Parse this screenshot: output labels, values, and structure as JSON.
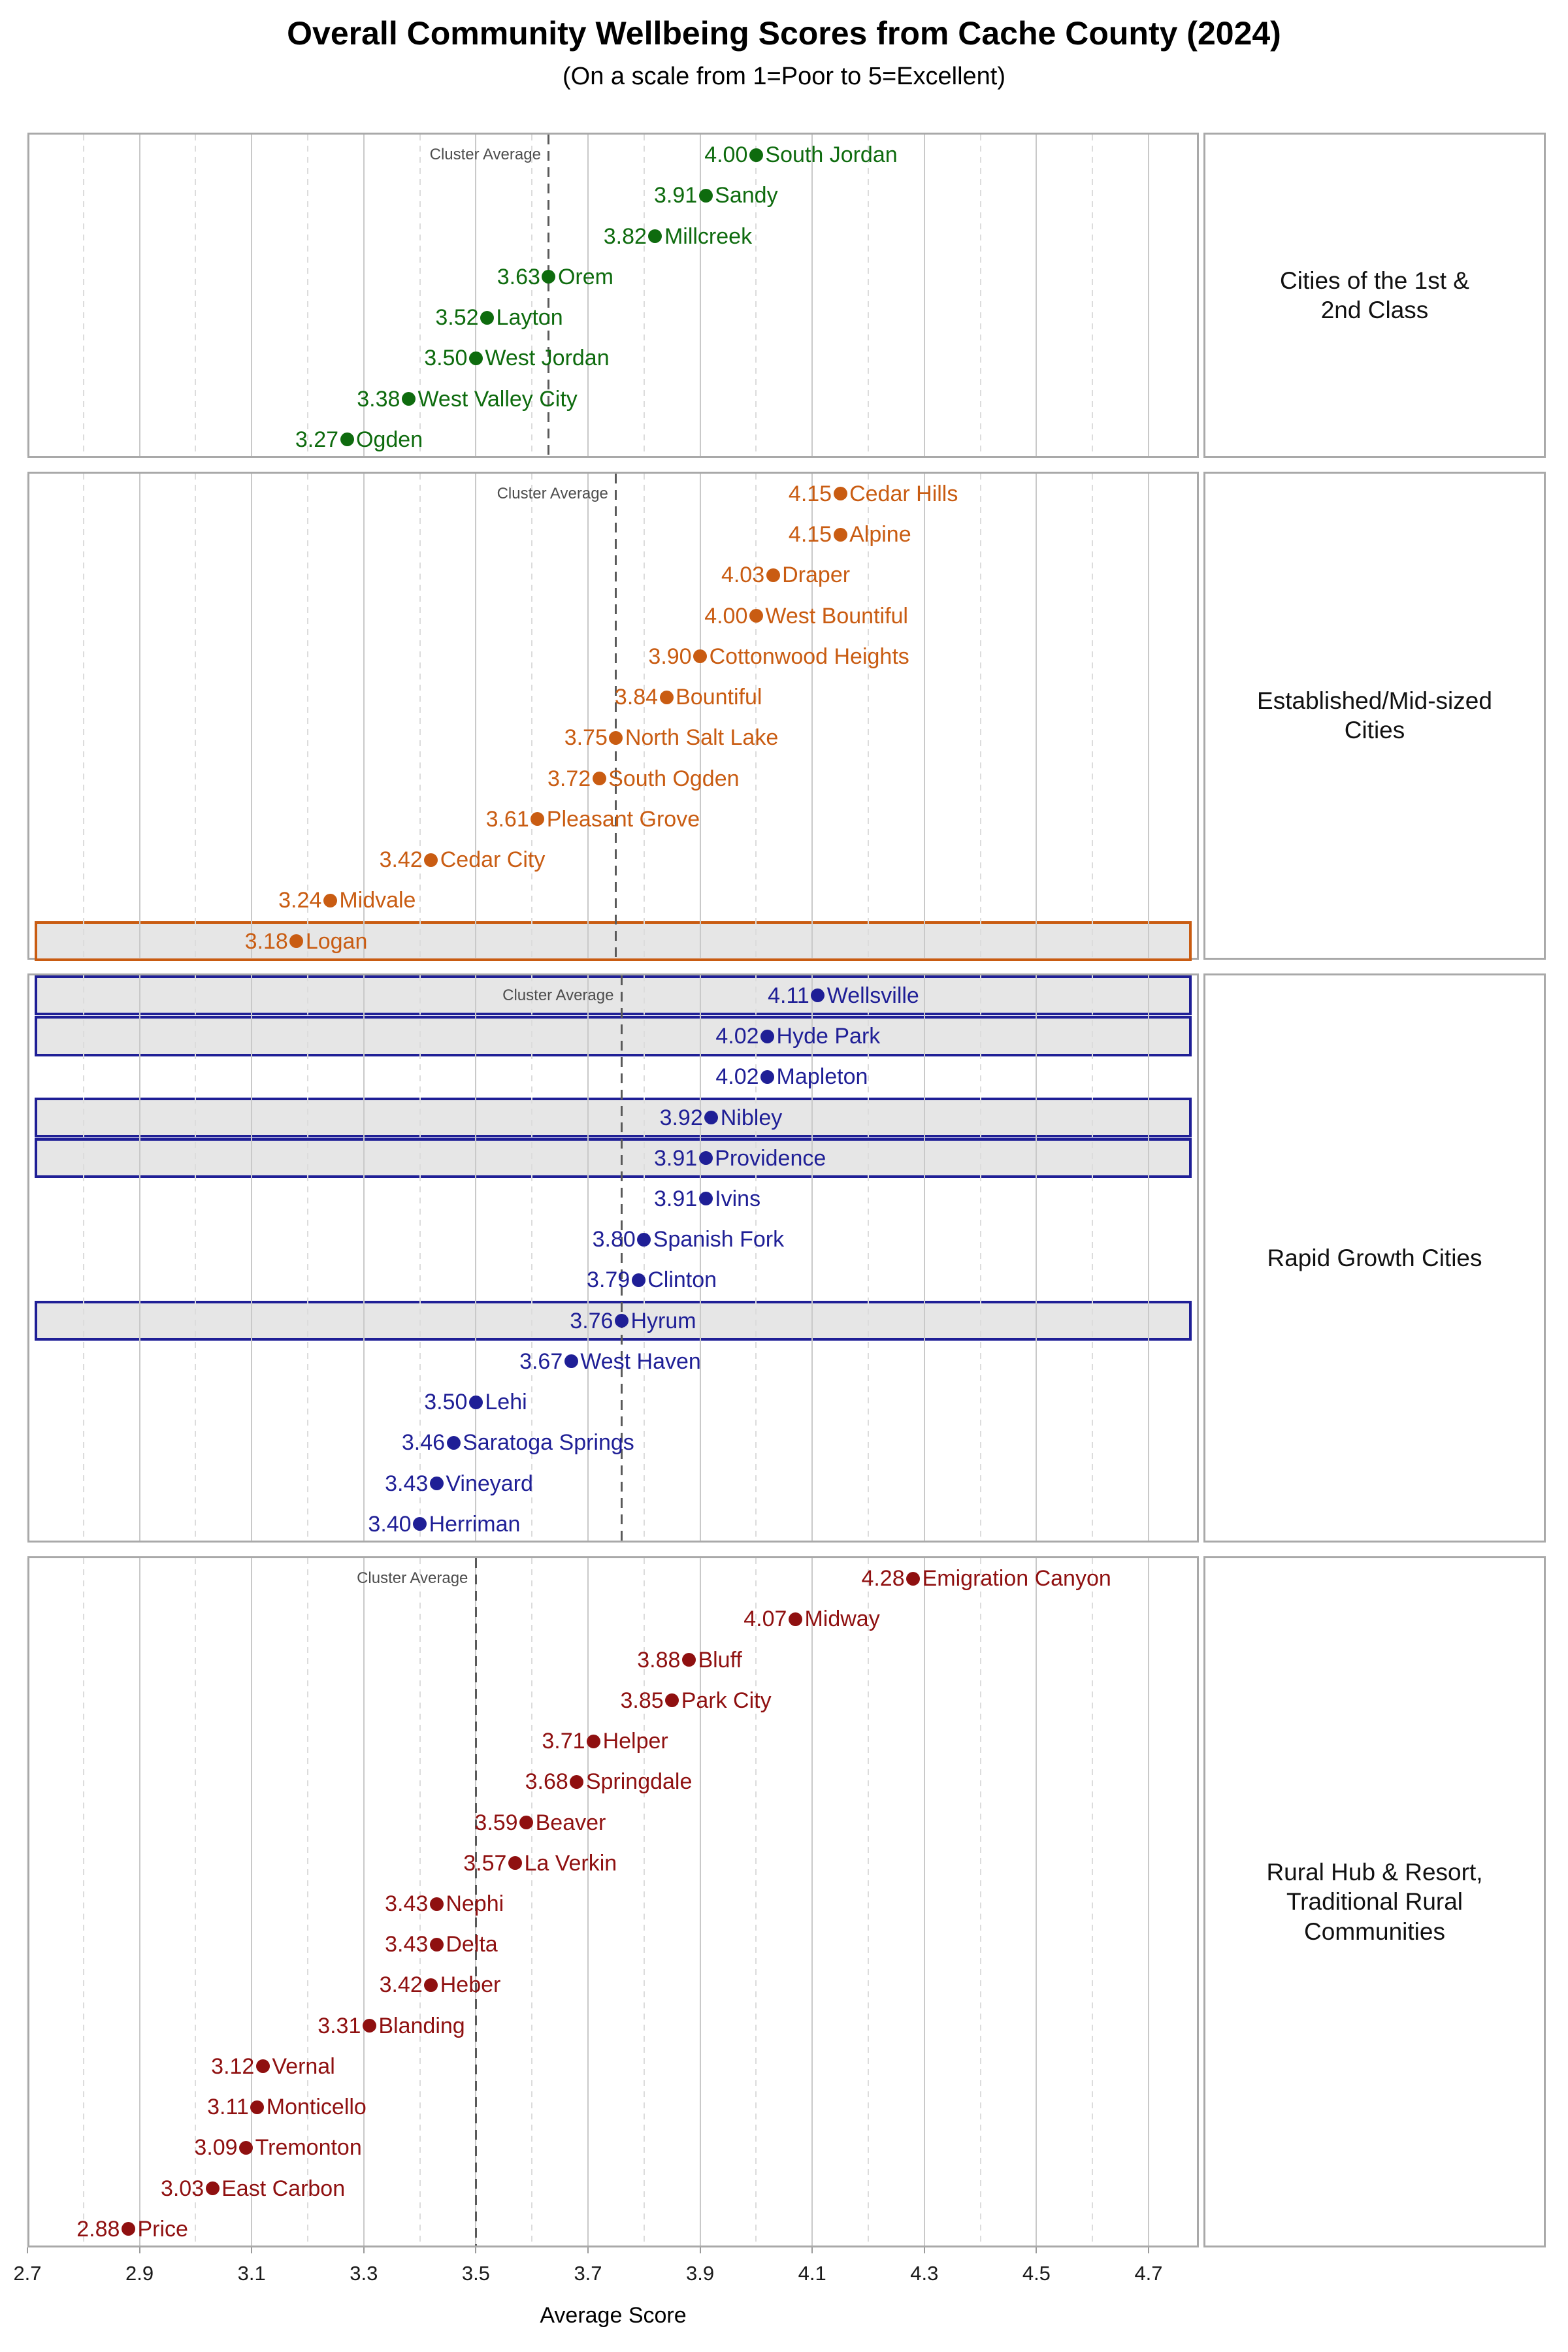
{
  "title": "Overall Community Wellbeing Scores from Cache County (2024)",
  "subtitle": "(On a scale from 1=Poor to 5=Excellent)",
  "cluster_average_label": "Cluster Average",
  "axis": {
    "label": "Average Score",
    "min": 2.7,
    "max": 4.79,
    "major_ticks": [
      2.7,
      2.9,
      3.1,
      3.3,
      3.5,
      3.7,
      3.9,
      4.1,
      4.3,
      4.5,
      4.7
    ],
    "major_tick_labels": [
      "2.7",
      "2.9",
      "3.1",
      "3.3",
      "3.5",
      "3.7",
      "3.9",
      "4.1",
      "4.3",
      "4.5",
      "4.7"
    ],
    "minor_ticks": [
      2.8,
      3.0,
      3.2,
      3.4,
      3.6,
      3.8,
      4.0,
      4.2,
      4.4,
      4.6
    ],
    "grid": true
  },
  "colors": {
    "facet_green": "#0e6b0e",
    "facet_orange": "#c95c12",
    "facet_navy": "#1f1f96",
    "facet_darkred": "#8f1010",
    "grid_major": "#c9c9c9",
    "grid_minor": "#dcdcdc",
    "panel_border": "#a9a9a9",
    "cluster_line": "#5a5a5a",
    "highlight_fill": "#e6e6e6",
    "cluster_label_text": "#4d4d4d"
  },
  "chart_data": {
    "type": "scatter",
    "orientation": "horizontal-dot-plot",
    "legend_position": "none",
    "facets": [
      {
        "label": "Cities of the 1st & 2nd Class",
        "label_lines": [
          "Cities of the 1st &",
          "2nd Class"
        ],
        "color": "#0e6b0e",
        "cluster_average": 3.63,
        "points": [
          {
            "city": "South Jordan",
            "value": 4.0,
            "value_label": "4.00",
            "highlight": false
          },
          {
            "city": "Sandy",
            "value": 3.91,
            "value_label": "3.91",
            "highlight": false
          },
          {
            "city": "Millcreek",
            "value": 3.82,
            "value_label": "3.82",
            "highlight": false
          },
          {
            "city": "Orem",
            "value": 3.63,
            "value_label": "3.63",
            "highlight": false
          },
          {
            "city": "Layton",
            "value": 3.52,
            "value_label": "3.52",
            "highlight": false
          },
          {
            "city": "West Jordan",
            "value": 3.5,
            "value_label": "3.50",
            "highlight": false
          },
          {
            "city": "West Valley City",
            "value": 3.38,
            "value_label": "3.38",
            "highlight": false
          },
          {
            "city": "Ogden",
            "value": 3.27,
            "value_label": "3.27",
            "highlight": false
          }
        ]
      },
      {
        "label": "Established/Mid-sized Cities",
        "label_lines": [
          "Established/Mid-sized",
          "Cities"
        ],
        "color": "#c95c12",
        "cluster_average": 3.75,
        "points": [
          {
            "city": "Cedar Hills",
            "value": 4.15,
            "value_label": "4.15",
            "highlight": false
          },
          {
            "city": "Alpine",
            "value": 4.15,
            "value_label": "4.15",
            "highlight": false
          },
          {
            "city": "Draper",
            "value": 4.03,
            "value_label": "4.03",
            "highlight": false
          },
          {
            "city": "West Bountiful",
            "value": 4.0,
            "value_label": "4.00",
            "highlight": false
          },
          {
            "city": "Cottonwood Heights",
            "value": 3.9,
            "value_label": "3.90",
            "highlight": false
          },
          {
            "city": "Bountiful",
            "value": 3.84,
            "value_label": "3.84",
            "highlight": false
          },
          {
            "city": "North Salt Lake",
            "value": 3.75,
            "value_label": "3.75",
            "highlight": false
          },
          {
            "city": "South Ogden",
            "value": 3.72,
            "value_label": "3.72",
            "highlight": false
          },
          {
            "city": "Pleasant Grove",
            "value": 3.61,
            "value_label": "3.61",
            "highlight": false
          },
          {
            "city": "Cedar City",
            "value": 3.42,
            "value_label": "3.42",
            "highlight": false
          },
          {
            "city": "Midvale",
            "value": 3.24,
            "value_label": "3.24",
            "highlight": false
          },
          {
            "city": "Logan",
            "value": 3.18,
            "value_label": "3.18",
            "highlight": true
          }
        ]
      },
      {
        "label": "Rapid Growth Cities",
        "label_lines": [
          "Rapid Growth Cities"
        ],
        "color": "#1f1f96",
        "cluster_average": 3.76,
        "points": [
          {
            "city": "Wellsville",
            "value": 4.11,
            "value_label": "4.11",
            "highlight": true
          },
          {
            "city": "Hyde Park",
            "value": 4.02,
            "value_label": "4.02",
            "highlight": true
          },
          {
            "city": "Mapleton",
            "value": 4.02,
            "value_label": "4.02",
            "highlight": false
          },
          {
            "city": "Nibley",
            "value": 3.92,
            "value_label": "3.92",
            "highlight": true
          },
          {
            "city": "Providence",
            "value": 3.91,
            "value_label": "3.91",
            "highlight": true
          },
          {
            "city": "Ivins",
            "value": 3.91,
            "value_label": "3.91",
            "highlight": false
          },
          {
            "city": "Spanish Fork",
            "value": 3.8,
            "value_label": "3.80",
            "highlight": false
          },
          {
            "city": "Clinton",
            "value": 3.79,
            "value_label": "3.79",
            "highlight": false
          },
          {
            "city": "Hyrum",
            "value": 3.76,
            "value_label": "3.76",
            "highlight": true
          },
          {
            "city": "West Haven",
            "value": 3.67,
            "value_label": "3.67",
            "highlight": false
          },
          {
            "city": "Lehi",
            "value": 3.5,
            "value_label": "3.50",
            "highlight": false
          },
          {
            "city": "Saratoga Springs",
            "value": 3.46,
            "value_label": "3.46",
            "highlight": false
          },
          {
            "city": "Vineyard",
            "value": 3.43,
            "value_label": "3.43",
            "highlight": false
          },
          {
            "city": "Herriman",
            "value": 3.4,
            "value_label": "3.40",
            "highlight": false
          }
        ]
      },
      {
        "label": "Rural Hub & Resort, Traditional Rural Communities",
        "label_lines": [
          "Rural Hub & Resort,",
          "Traditional Rural",
          "Communities"
        ],
        "color": "#8f1010",
        "cluster_average": 3.5,
        "points": [
          {
            "city": "Emigration Canyon",
            "value": 4.28,
            "value_label": "4.28",
            "highlight": false
          },
          {
            "city": "Midway",
            "value": 4.07,
            "value_label": "4.07",
            "highlight": false
          },
          {
            "city": "Bluff",
            "value": 3.88,
            "value_label": "3.88",
            "highlight": false
          },
          {
            "city": "Park City",
            "value": 3.85,
            "value_label": "3.85",
            "highlight": false
          },
          {
            "city": "Helper",
            "value": 3.71,
            "value_label": "3.71",
            "highlight": false
          },
          {
            "city": "Springdale",
            "value": 3.68,
            "value_label": "3.68",
            "highlight": false
          },
          {
            "city": "Beaver",
            "value": 3.59,
            "value_label": "3.59",
            "highlight": false
          },
          {
            "city": "La Verkin",
            "value": 3.57,
            "value_label": "3.57",
            "highlight": false
          },
          {
            "city": "Nephi",
            "value": 3.43,
            "value_label": "3.43",
            "highlight": false
          },
          {
            "city": "Delta",
            "value": 3.43,
            "value_label": "3.43",
            "highlight": false
          },
          {
            "city": "Heber",
            "value": 3.42,
            "value_label": "3.42",
            "highlight": false
          },
          {
            "city": "Blanding",
            "value": 3.31,
            "value_label": "3.31",
            "highlight": false
          },
          {
            "city": "Vernal",
            "value": 3.12,
            "value_label": "3.12",
            "highlight": false
          },
          {
            "city": "Monticello",
            "value": 3.11,
            "value_label": "3.11",
            "highlight": false
          },
          {
            "city": "Tremonton",
            "value": 3.09,
            "value_label": "3.09",
            "highlight": false
          },
          {
            "city": "East Carbon",
            "value": 3.03,
            "value_label": "3.03",
            "highlight": false
          },
          {
            "city": "Price",
            "value": 2.88,
            "value_label": "2.88",
            "highlight": false
          }
        ]
      }
    ]
  }
}
